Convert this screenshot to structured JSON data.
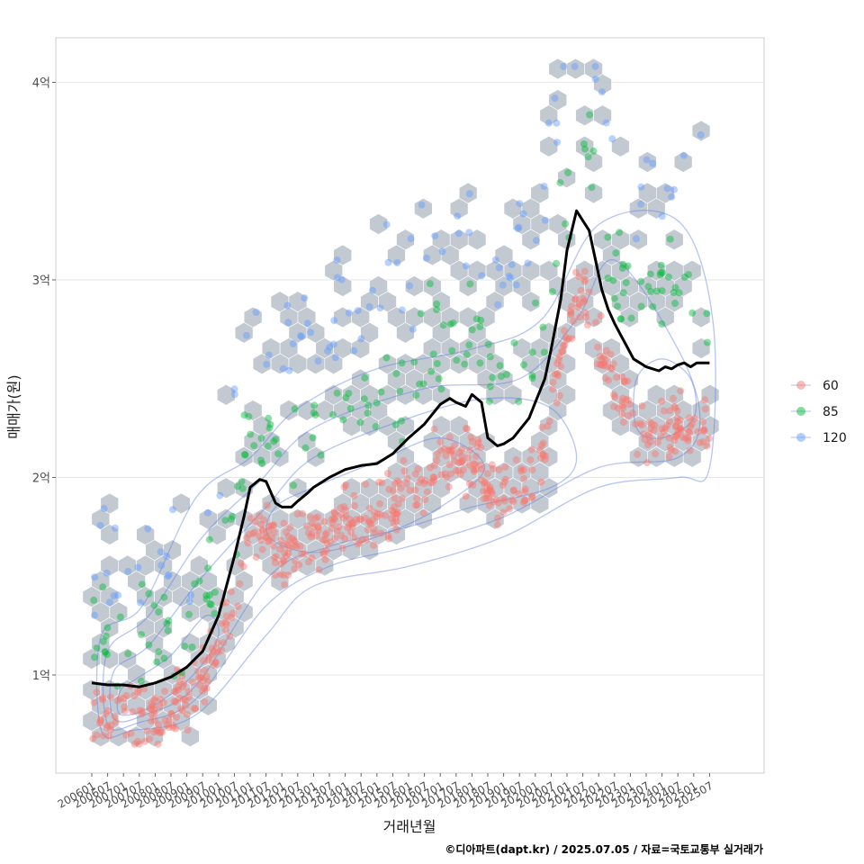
{
  "chart_data": {
    "type": "scatter",
    "xlabel": "거래년월",
    "ylabel": "매매가(원)",
    "caption": "©디아파트(dapt.kr) / 2025.07.05 / 자료=국토교통부 실거래가",
    "x_ticks": [
      "200601",
      "200607",
      "200701",
      "200707",
      "200801",
      "200807",
      "200901",
      "200907",
      "201001",
      "201007",
      "201101",
      "201107",
      "201201",
      "201207",
      "201301",
      "201307",
      "201401",
      "201407",
      "201501",
      "201507",
      "201601",
      "201607",
      "201701",
      "201707",
      "201801",
      "201807",
      "201901",
      "201907",
      "202001",
      "202007",
      "202101",
      "202107",
      "202201",
      "202207",
      "202301",
      "202307",
      "202401",
      "202407",
      "202501",
      "202507"
    ],
    "y_ticks": [
      {
        "value": 1,
        "label": "1억"
      },
      {
        "value": 2,
        "label": "2억"
      },
      {
        "value": 3,
        "label": "3억"
      },
      {
        "value": 4,
        "label": "4억"
      }
    ],
    "x_range": [
      2005.2,
      2028.6
    ],
    "y_range": [
      0.5,
      4.22
    ],
    "y_unit": "억 원",
    "grid": true,
    "legend_position": "right",
    "legend": [
      {
        "label": "60",
        "color": "#f8766d"
      },
      {
        "label": "85",
        "color": "#00ba38"
      },
      {
        "label": "120",
        "color": "#619cff"
      }
    ],
    "colors": {
      "hexbin": "#b9c0c9",
      "contour": "#5b7fe6",
      "trend": "#000000"
    },
    "trend_line": {
      "x": [
        2006.0,
        2006.5,
        2007.0,
        2007.5,
        2008.0,
        2008.5,
        2009.0,
        2009.5,
        2010.0,
        2010.5,
        2010.8,
        2011.0,
        2011.3,
        2011.5,
        2011.8,
        2012.0,
        2012.3,
        2012.5,
        2012.8,
        2013.0,
        2013.5,
        2014.0,
        2014.5,
        2015.0,
        2015.5,
        2016.0,
        2016.5,
        2017.0,
        2017.3,
        2017.5,
        2017.8,
        2018.0,
        2018.3,
        2018.5,
        2018.8,
        2019.0,
        2019.3,
        2019.5,
        2019.8,
        2020.0,
        2020.3,
        2020.5,
        2020.8,
        2021.0,
        2021.3,
        2021.5,
        2021.7,
        2021.9,
        2022.1,
        2022.3,
        2022.5,
        2022.7,
        2022.9,
        2023.1,
        2023.3,
        2023.5,
        2023.7,
        2023.9,
        2024.1,
        2024.3,
        2024.5,
        2024.7,
        2024.9,
        2025.1,
        2025.3,
        2025.5
      ],
      "y": [
        0.96,
        0.95,
        0.95,
        0.94,
        0.96,
        0.99,
        1.04,
        1.12,
        1.3,
        1.6,
        1.8,
        1.95,
        1.99,
        1.98,
        1.87,
        1.85,
        1.85,
        1.88,
        1.92,
        1.95,
        2.0,
        2.04,
        2.06,
        2.07,
        2.12,
        2.2,
        2.27,
        2.37,
        2.4,
        2.38,
        2.36,
        2.42,
        2.38,
        2.2,
        2.16,
        2.17,
        2.2,
        2.24,
        2.3,
        2.38,
        2.5,
        2.65,
        2.9,
        3.15,
        3.35,
        3.3,
        3.25,
        3.1,
        2.95,
        2.85,
        2.78,
        2.72,
        2.66,
        2.6,
        2.58,
        2.56,
        2.55,
        2.54,
        2.56,
        2.55,
        2.57,
        2.58,
        2.56,
        2.58,
        2.58,
        2.58
      ]
    },
    "density_contours": [
      {
        "level": 1,
        "points": [
          [
            2006.3,
            0.72
          ],
          [
            2007.3,
            0.72
          ],
          [
            2009.3,
            0.8
          ],
          [
            2011.5,
            1.2
          ],
          [
            2013.0,
            1.45
          ],
          [
            2016.0,
            1.55
          ],
          [
            2019.0,
            1.7
          ],
          [
            2022.0,
            1.95
          ],
          [
            2024.5,
            2.0
          ],
          [
            2025.5,
            2.05
          ],
          [
            2025.6,
            2.8
          ],
          [
            2024.5,
            3.3
          ],
          [
            2022.0,
            3.28
          ],
          [
            2020.2,
            2.8
          ],
          [
            2018.0,
            2.65
          ],
          [
            2015.0,
            2.55
          ],
          [
            2012.5,
            2.35
          ],
          [
            2011.0,
            2.1
          ],
          [
            2009.3,
            1.9
          ],
          [
            2007.6,
            1.35
          ],
          [
            2006.3,
            1.2
          ]
        ]
      },
      {
        "level": 2,
        "points": [
          [
            2006.5,
            0.75
          ],
          [
            2007.5,
            0.76
          ],
          [
            2009.3,
            0.88
          ],
          [
            2011.5,
            1.35
          ],
          [
            2013.5,
            1.55
          ],
          [
            2016.0,
            1.65
          ],
          [
            2019.0,
            1.8
          ],
          [
            2022.0,
            2.05
          ],
          [
            2024.5,
            2.1
          ],
          [
            2025.2,
            2.3
          ],
          [
            2024.5,
            2.65
          ],
          [
            2022.5,
            3.1
          ],
          [
            2021.3,
            2.8
          ],
          [
            2019.5,
            2.5
          ],
          [
            2016.5,
            2.45
          ],
          [
            2013.0,
            2.25
          ],
          [
            2011.3,
            1.98
          ],
          [
            2009.5,
            1.7
          ],
          [
            2007.8,
            1.3
          ],
          [
            2006.5,
            1.12
          ]
        ]
      },
      {
        "level": 3,
        "points": [
          [
            2006.7,
            0.78
          ],
          [
            2007.7,
            0.8
          ],
          [
            2009.3,
            0.95
          ],
          [
            2011.6,
            1.5
          ],
          [
            2013.5,
            1.65
          ],
          [
            2016.0,
            1.75
          ],
          [
            2018.0,
            1.85
          ],
          [
            2020.5,
            1.95
          ],
          [
            2021.3,
            2.1
          ],
          [
            2020.5,
            2.35
          ],
          [
            2018.5,
            2.4
          ],
          [
            2016.0,
            2.3
          ],
          [
            2013.0,
            2.1
          ],
          [
            2011.5,
            1.85
          ],
          [
            2009.5,
            1.5
          ],
          [
            2007.8,
            1.15
          ],
          [
            2006.7,
            1.02
          ]
        ]
      },
      {
        "level": 4,
        "points": [
          [
            2006.9,
            0.8
          ],
          [
            2007.9,
            0.84
          ],
          [
            2009.2,
            1.0
          ],
          [
            2010.0,
            1.2
          ],
          [
            2009.6,
            1.3
          ],
          [
            2008.5,
            1.1
          ],
          [
            2007.4,
            0.98
          ],
          [
            2006.9,
            0.92
          ]
        ]
      },
      {
        "level": 5,
        "points": [
          [
            2011.6,
            1.7
          ],
          [
            2013.0,
            1.62
          ],
          [
            2015.0,
            1.7
          ],
          [
            2017.0,
            1.85
          ],
          [
            2018.4,
            2.05
          ],
          [
            2017.0,
            2.2
          ],
          [
            2015.0,
            2.08
          ],
          [
            2013.0,
            1.95
          ],
          [
            2011.8,
            1.85
          ]
        ]
      },
      {
        "level": 6,
        "points": [
          [
            2023.2,
            2.25
          ],
          [
            2024.0,
            2.2
          ],
          [
            2025.0,
            2.3
          ],
          [
            2024.9,
            2.5
          ],
          [
            2024.0,
            2.6
          ],
          [
            2023.2,
            2.5
          ]
        ]
      }
    ]
  }
}
